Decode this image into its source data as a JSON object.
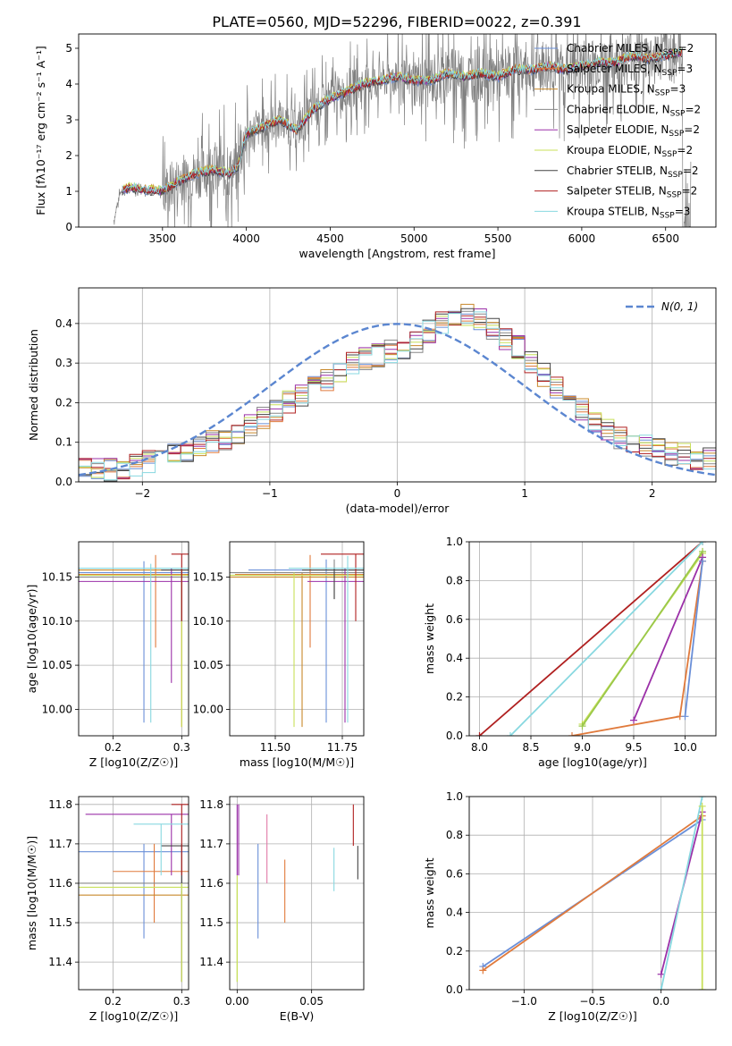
{
  "figure": {
    "title": "PLATE=0560, MJD=52296, FIBERID=0022, z=0.391"
  },
  "legend_entries": [
    {
      "label": "Chabrier MILES, N",
      "sub": "SSP",
      "suffix": "=2",
      "color": "#6a8fd8"
    },
    {
      "label": "Salpeter MILES, N",
      "sub": "SSP",
      "suffix": "=3",
      "color": "#e07a3c"
    },
    {
      "label": "Kroupa MILES, N",
      "sub": "SSP",
      "suffix": "=3",
      "color": "#c8882a"
    },
    {
      "label": "Chabrier ELODIE, N",
      "sub": "SSP",
      "suffix": "=2",
      "color": "#888888"
    },
    {
      "label": "Salpeter ELODIE, N",
      "sub": "SSP",
      "suffix": "=2",
      "color": "#9b30a8"
    },
    {
      "label": "Kroupa ELODIE, N",
      "sub": "SSP",
      "suffix": "=2",
      "color": "#c8e05a"
    },
    {
      "label": "Chabrier STELIB, N",
      "sub": "SSP",
      "suffix": "=2",
      "color": "#444444"
    },
    {
      "label": "Salpeter STELIB, N",
      "sub": "SSP",
      "suffix": "=2",
      "color": "#b02020"
    },
    {
      "label": "Kroupa STELIB, N",
      "sub": "SSP",
      "suffix": "=3",
      "color": "#88d8e0"
    }
  ],
  "chart_data": [
    {
      "id": "spectrum",
      "type": "line",
      "xlabel": "wavelength [Angstrom, rest frame]",
      "ylabel": "Flux [fλ10⁻¹⁷ erg cm⁻² s⁻¹ A⁻¹]",
      "xlim": [
        3000,
        6800
      ],
      "ylim": [
        0,
        5.4
      ],
      "xticks": [
        "3500",
        "4000",
        "4500",
        "5000",
        "5500",
        "6000",
        "6500"
      ],
      "yticks": [
        "0",
        "1",
        "2",
        "3",
        "4",
        "5"
      ],
      "model_continuum": {
        "x": [
          3200,
          3250,
          3300,
          3400,
          3500,
          3600,
          3700,
          3800,
          3900,
          3950,
          4000,
          4100,
          4200,
          4300,
          4400,
          4500,
          4600,
          4700,
          4800,
          4900,
          5000,
          5100,
          5200,
          5300,
          5400,
          5500,
          5600,
          5700,
          5800,
          5900,
          6000,
          6100,
          6200,
          6300,
          6400,
          6500,
          6600
        ],
        "y": [
          0.0,
          1.0,
          1.1,
          1.05,
          1.0,
          1.3,
          1.5,
          1.6,
          1.5,
          1.7,
          2.6,
          2.8,
          3.0,
          2.7,
          3.3,
          3.6,
          3.8,
          4.0,
          4.1,
          4.2,
          4.1,
          4.1,
          4.3,
          4.2,
          4.3,
          4.2,
          4.4,
          4.4,
          4.5,
          4.4,
          4.5,
          4.6,
          4.6,
          4.8,
          4.7,
          4.8,
          4.9
        ]
      }
    },
    {
      "id": "residuals",
      "type": "histogram",
      "xlabel": "(data-model)/error",
      "ylabel": "Normed distribution",
      "xlim": [
        -2.5,
        2.5
      ],
      "ylim": [
        0,
        0.49
      ],
      "xticks": [
        "−2",
        "−1",
        "0",
        "1",
        "2"
      ],
      "yticks": [
        "0.0",
        "0.1",
        "0.2",
        "0.3",
        "0.4"
      ],
      "legend_label": "N(0, 1)",
      "bin_width": 0.1,
      "bin_start": -2.5,
      "values": [
        0.03,
        0.03,
        0.03,
        0.035,
        0.04,
        0.05,
        0.06,
        0.07,
        0.08,
        0.09,
        0.1,
        0.11,
        0.12,
        0.14,
        0.16,
        0.18,
        0.2,
        0.22,
        0.24,
        0.26,
        0.28,
        0.3,
        0.31,
        0.32,
        0.33,
        0.33,
        0.35,
        0.38,
        0.4,
        0.41,
        0.42,
        0.41,
        0.39,
        0.36,
        0.34,
        0.3,
        0.27,
        0.24,
        0.21,
        0.18,
        0.15,
        0.13,
        0.11,
        0.1,
        0.09,
        0.08,
        0.07,
        0.07,
        0.06,
        0.06
      ]
    },
    {
      "id": "age-vs-Z",
      "type": "scatter",
      "xlabel": "Z [log10(Z/Z☉)]",
      "ylabel": "age  [log10(age/yr)]",
      "xlim": [
        0.15,
        0.31
      ],
      "ylim": [
        9.97,
        10.19
      ],
      "xticks": [
        "0.2",
        "0.3"
      ],
      "yticks": [
        "10.00",
        "10.05",
        "10.10",
        "10.15"
      ]
    },
    {
      "id": "age-vs-mass",
      "type": "scatter",
      "xlabel": "mass [log10(M/M☉)]",
      "ylabel": "",
      "xlim": [
        11.33,
        11.83
      ],
      "ylim": [
        9.97,
        10.19
      ],
      "xticks": [
        "11.50",
        "11.75"
      ],
      "yticks": [
        "10.00",
        "10.05",
        "10.10",
        "10.15"
      ]
    },
    {
      "id": "mass-weight-vs-age",
      "type": "line",
      "xlabel": "age  [log10(age/yr)]",
      "ylabel": "mass weight",
      "xlim": [
        7.9,
        10.3
      ],
      "ylim": [
        0,
        1
      ],
      "xticks": [
        "8.0",
        "8.5",
        "9.0",
        "9.5",
        "10.0"
      ],
      "yticks": [
        "0.0",
        "0.2",
        "0.4",
        "0.6",
        "0.8",
        "1.0"
      ],
      "series": [
        {
          "color": "#b02020",
          "x": [
            8.0,
            10.17
          ],
          "y": [
            0.0,
            1.0
          ]
        },
        {
          "color": "#88d8e0",
          "x": [
            8.3,
            10.17
          ],
          "y": [
            0.0,
            1.0
          ]
        },
        {
          "color": "#c8e05a",
          "x": [
            9.0,
            10.17
          ],
          "y": [
            0.06,
            0.94
          ]
        },
        {
          "color": "#9ac84a",
          "x": [
            9.0,
            10.17
          ],
          "y": [
            0.05,
            0.95
          ]
        },
        {
          "color": "#9b30a8",
          "x": [
            9.5,
            10.17
          ],
          "y": [
            0.08,
            0.92
          ]
        },
        {
          "color": "#e07a3c",
          "x": [
            8.9,
            9.95,
            10.17
          ],
          "y": [
            0.0,
            0.1,
            0.9
          ]
        },
        {
          "color": "#6a8fd8",
          "x": [
            10.0,
            10.17
          ],
          "y": [
            0.1,
            0.9
          ]
        }
      ]
    },
    {
      "id": "mass-vs-Z",
      "type": "scatter",
      "xlabel": "Z [log10(Z/Z☉)]",
      "ylabel": "mass [log10(M/M☉)]",
      "xlim": [
        0.15,
        0.31
      ],
      "ylim": [
        11.33,
        11.82
      ],
      "xticks": [
        "0.2",
        "0.3"
      ],
      "yticks": [
        "11.4",
        "11.5",
        "11.6",
        "11.7",
        "11.8"
      ]
    },
    {
      "id": "mass-vs-ebv",
      "type": "scatter",
      "xlabel": "E(B-V)",
      "ylabel": "",
      "xlim": [
        -0.005,
        0.085
      ],
      "ylim": [
        11.33,
        11.82
      ],
      "xticks": [
        "0.00",
        "0.05"
      ],
      "yticks": [
        "11.4",
        "11.5",
        "11.6",
        "11.7",
        "11.8"
      ]
    },
    {
      "id": "mass-weight-vs-Z",
      "type": "line",
      "xlabel": "Z [log10(Z/Z☉)]",
      "ylabel": "mass weight",
      "xlim": [
        -1.4,
        0.4
      ],
      "ylim": [
        0,
        1
      ],
      "xticks": [
        "−1.0",
        "−0.5",
        "0.0"
      ],
      "yticks": [
        "0.0",
        "0.2",
        "0.4",
        "0.6",
        "0.8",
        "1.0"
      ],
      "series": [
        {
          "color": "#6a8fd8",
          "x": [
            -1.3,
            0.3
          ],
          "y": [
            0.12,
            0.88
          ]
        },
        {
          "color": "#e07a3c",
          "x": [
            -1.3,
            0.3
          ],
          "y": [
            0.1,
            0.9
          ]
        },
        {
          "color": "#9b30a8",
          "x": [
            0.0,
            0.3
          ],
          "y": [
            0.08,
            0.92
          ]
        },
        {
          "color": "#88d8e0",
          "x": [
            0.0,
            0.3
          ],
          "y": [
            0.0,
            1.0
          ]
        },
        {
          "color": "#c8e05a",
          "x": [
            0.3,
            0.3
          ],
          "y": [
            0.0,
            0.95
          ]
        }
      ]
    }
  ]
}
